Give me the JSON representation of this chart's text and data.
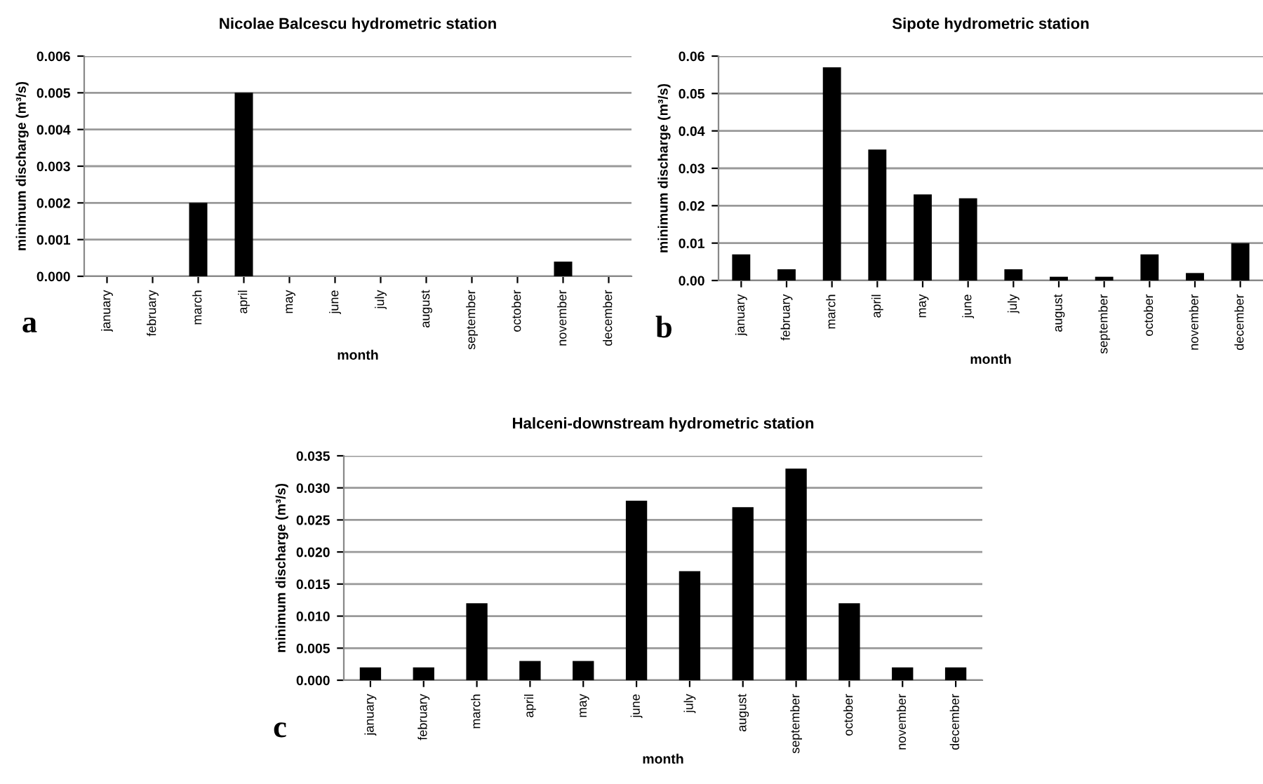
{
  "chart_data": [
    {
      "type": "bar",
      "title": "Nicolae Balcescu hydrometric station",
      "xlabel": "month",
      "ylabel": "minimum discharge (m³/s)",
      "annotations": [
        "a"
      ],
      "categories": [
        "january",
        "february",
        "march",
        "april",
        "may",
        "june",
        "july",
        "august",
        "september",
        "october",
        "november",
        "december"
      ],
      "values": [
        0,
        0,
        0.002,
        0.005,
        0,
        0,
        0,
        0,
        0,
        0,
        0.0004,
        0
      ],
      "color": "#000000",
      "ylim": [
        0,
        0.006
      ],
      "yticks": [
        {
          "value": 0,
          "label": "0.000"
        },
        {
          "value": 0.001,
          "label": "0.001"
        },
        {
          "value": 0.002,
          "label": "0.002"
        },
        {
          "value": 0.003,
          "label": "0.003"
        },
        {
          "value": 0.004,
          "label": "0.004"
        },
        {
          "value": 0.005,
          "label": "0.005"
        },
        {
          "value": 0.006,
          "label": "0.006"
        }
      ],
      "grid": "y"
    },
    {
      "type": "bar",
      "title": "Sipote hydrometric station",
      "xlabel": "month",
      "ylabel": "minimum discharge (m³/s)",
      "annotations": [
        "b"
      ],
      "categories": [
        "january",
        "february",
        "march",
        "april",
        "may",
        "june",
        "july",
        "august",
        "september",
        "october",
        "november",
        "december"
      ],
      "values": [
        0.007,
        0.003,
        0.057,
        0.035,
        0.023,
        0.022,
        0.003,
        0.001,
        0.001,
        0.007,
        0.002,
        0.01
      ],
      "color": "#000000",
      "ylim": [
        0,
        0.06
      ],
      "yticks": [
        {
          "value": 0,
          "label": "0.00"
        },
        {
          "value": 0.01,
          "label": "0.01"
        },
        {
          "value": 0.02,
          "label": "0.02"
        },
        {
          "value": 0.03,
          "label": "0.03"
        },
        {
          "value": 0.04,
          "label": "0.04"
        },
        {
          "value": 0.05,
          "label": "0.05"
        },
        {
          "value": 0.06,
          "label": "0.06"
        }
      ],
      "grid": "y"
    },
    {
      "type": "bar",
      "title": "Halceni-downstream hydrometric station",
      "xlabel": "month",
      "ylabel": "minimum discharge (m³/s)",
      "annotations": [
        "c"
      ],
      "categories": [
        "january",
        "february",
        "march",
        "april",
        "may",
        "june",
        "july",
        "august",
        "september",
        "october",
        "november",
        "december"
      ],
      "values": [
        0.002,
        0.002,
        0.012,
        0.003,
        0.003,
        0.028,
        0.017,
        0.027,
        0.033,
        0.012,
        0.002,
        0.002
      ],
      "color": "#000000",
      "ylim": [
        0,
        0.035
      ],
      "yticks": [
        {
          "value": 0,
          "label": "0.000"
        },
        {
          "value": 0.005,
          "label": "0.005"
        },
        {
          "value": 0.01,
          "label": "0.010"
        },
        {
          "value": 0.015,
          "label": "0.015"
        },
        {
          "value": 0.02,
          "label": "0.020"
        },
        {
          "value": 0.025,
          "label": "0.025"
        },
        {
          "value": 0.03,
          "label": "0.030"
        },
        {
          "value": 0.035,
          "label": "0.035"
        }
      ],
      "grid": "y"
    }
  ]
}
